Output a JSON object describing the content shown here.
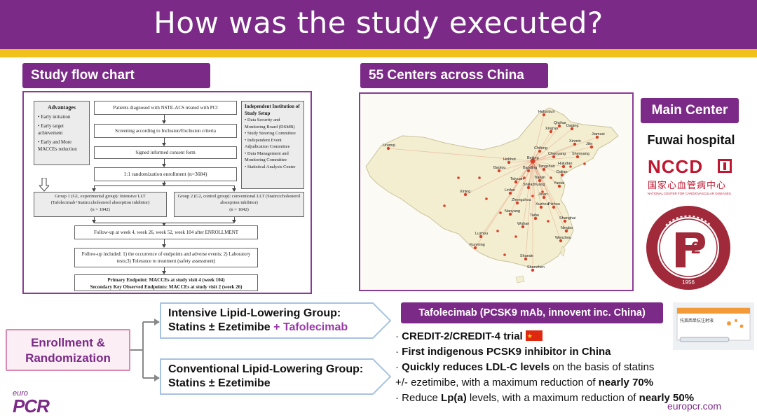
{
  "title": "How was the study executed?",
  "labels": {
    "flow": "Study flow chart",
    "centers": "55 Centers across China",
    "main_center": "Main Center"
  },
  "flowchart": {
    "advantages_title": "Advantages",
    "advantages": [
      "• Early initiation",
      "• Early target achievement",
      "• Early and More MACCEs reduction"
    ],
    "patients": "Patients diagnosed with NSTE-ACS treated with PCI",
    "screening": "Screening according to Inclusion/Exclusion criteria",
    "consent": "Signed informed consent form",
    "randomization": "1:1 randomization enrollment (n=3684)",
    "independent_title": "Independent Institution of Study Setup",
    "independent": [
      "• Data Security and Monitoring Board (DSMB)",
      "• Study Steering Committee",
      "• Independent Event Adjudication Committee",
      "• Data Management and Monitoring Committee",
      "• Statistical Analysis Center"
    ],
    "group1": "Group 1 (G1, experimental group): Intensive LLT (Tafolecimab+Statin±cholesterol absorption inhibitor)",
    "group1_n": "(n = 1842)",
    "group2": "Group 2 (G2, control group): conventional LLT (Statin±cholesterol absorption inhibitor)",
    "group2_n": "(n = 1842)",
    "followup": "Follow-up at week 4, week 26, week 52, week 104 after ENROLLMENT",
    "followup_included": "Follow-up included: 1) the occurrence of endpoints and adverse events; 2) Laboratory tests;3) Tolerance to treatment (safety assessment)",
    "endpoint1": "Primary Endpoint: MACCEs at study visit 4 (week 104)",
    "endpoint2": "Secondary Key Observed Endpoints: MACCEs at study visit 2 (week 26)"
  },
  "map": {
    "cities": [
      "Hulunbuir",
      "Qiqihar",
      "Daqing",
      "Jiamusi",
      "Xing'an",
      "Xinmin",
      "Jilin",
      "Shenyang",
      "Urumqi",
      "Chifeng",
      "Chaoyang",
      "Hohhot",
      "Beijing",
      "Huludao",
      "Baotou",
      "Baoding",
      "Tangshan",
      "Dalian",
      "Tianjin",
      "Taiyuan",
      "Yantai",
      "Xining",
      "Linfen",
      "Shijiazhuang",
      "Jinan",
      "Zhengzhou",
      "Xuzhou",
      "Pizhou",
      "Nanyang",
      "Taihe",
      "Shanghai",
      "Wuhan",
      "Ningbo",
      "Luzhou",
      "Wenzhou",
      "Kunming",
      "Shunde",
      "Shenzhen"
    ]
  },
  "main_center": {
    "hospital": "Fuwai hospital",
    "nccd": "NCCD",
    "nccd_cn": "国家心血管病中心",
    "nccd_en": "NATIONAL CENTER FOR CARDIOVASCULAR DISEASES",
    "seal_year": "1956"
  },
  "bottom": {
    "enrollment": "Enrollment & Randomization",
    "intensive_title": "Intensive Lipid-Lowering Group:",
    "intensive_drugs": "Statins ±  Ezetimibe",
    "intensive_add": "+ Tafolecimab",
    "conventional_title": "Conventional Lipid-Lowering Group:",
    "conventional_drugs": "Statins ± Ezetimibe",
    "tafo_label": "Tafolecimab (PCSK9 mAb, innovent inc. China)",
    "b1": "CREDIT-2/CREDIT-4 trial",
    "b2": "First indigenous PCSK9 inhibitor in China",
    "b3_bold": "Quickly reduces LDL-C levels",
    "b3_rest": " on the basis of statins",
    "b4_pre": "+/- ezetimibe, with a maximum reduction of ",
    "b4_bold": "nearly 70%",
    "b5_pre": "Reduce ",
    "b5_bold1": "Lp(a)",
    "b5_mid": " levels, with a maximum reduction of ",
    "b5_bold2": "nearly 50%",
    "pkg_text": "托莱西单抗注射液"
  },
  "brand": {
    "small": "euro",
    "big": "PCR",
    "site": "europcr.com"
  },
  "colors": {
    "purple": "#7b2a87",
    "gold": "#f0c11a",
    "pink_border": "#d68bb0",
    "map_land": "#f3eed0",
    "dot_red": "#d9402a"
  }
}
